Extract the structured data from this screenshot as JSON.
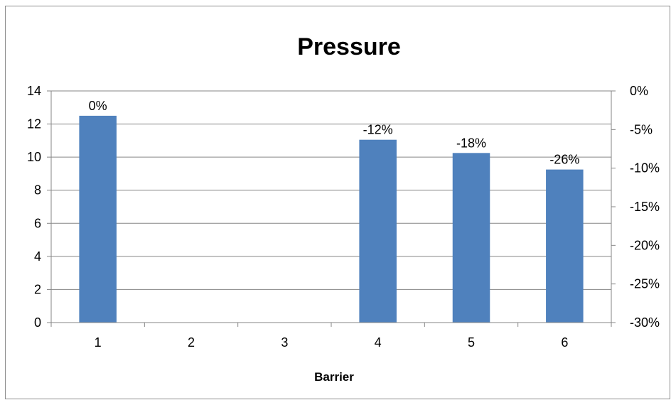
{
  "chart_data": {
    "type": "bar",
    "title": "Pressure",
    "xlabel": "Barrier",
    "ylabel": "",
    "categories": [
      "1",
      "2",
      "3",
      "4",
      "5",
      "6"
    ],
    "values": [
      12.5,
      0,
      0,
      11.05,
      10.25,
      9.25
    ],
    "data_labels": [
      "0%",
      null,
      null,
      "-12%",
      "-18%",
      "-26%"
    ],
    "ylim": [
      0,
      14
    ],
    "y_ticks": [
      "0",
      "2",
      "4",
      "6",
      "8",
      "10",
      "12",
      "14"
    ],
    "y2_ticks": [
      "-30%",
      "-25%",
      "-20%",
      "-15%",
      "-10%",
      "-5%",
      "0%"
    ],
    "y2lim": [
      -30,
      0
    ],
    "grid": true,
    "legend": "none",
    "colors": {
      "bar": "#4f81bd",
      "grid": "#868686",
      "axis": "#868686",
      "frame": "#8c8c8c"
    }
  }
}
